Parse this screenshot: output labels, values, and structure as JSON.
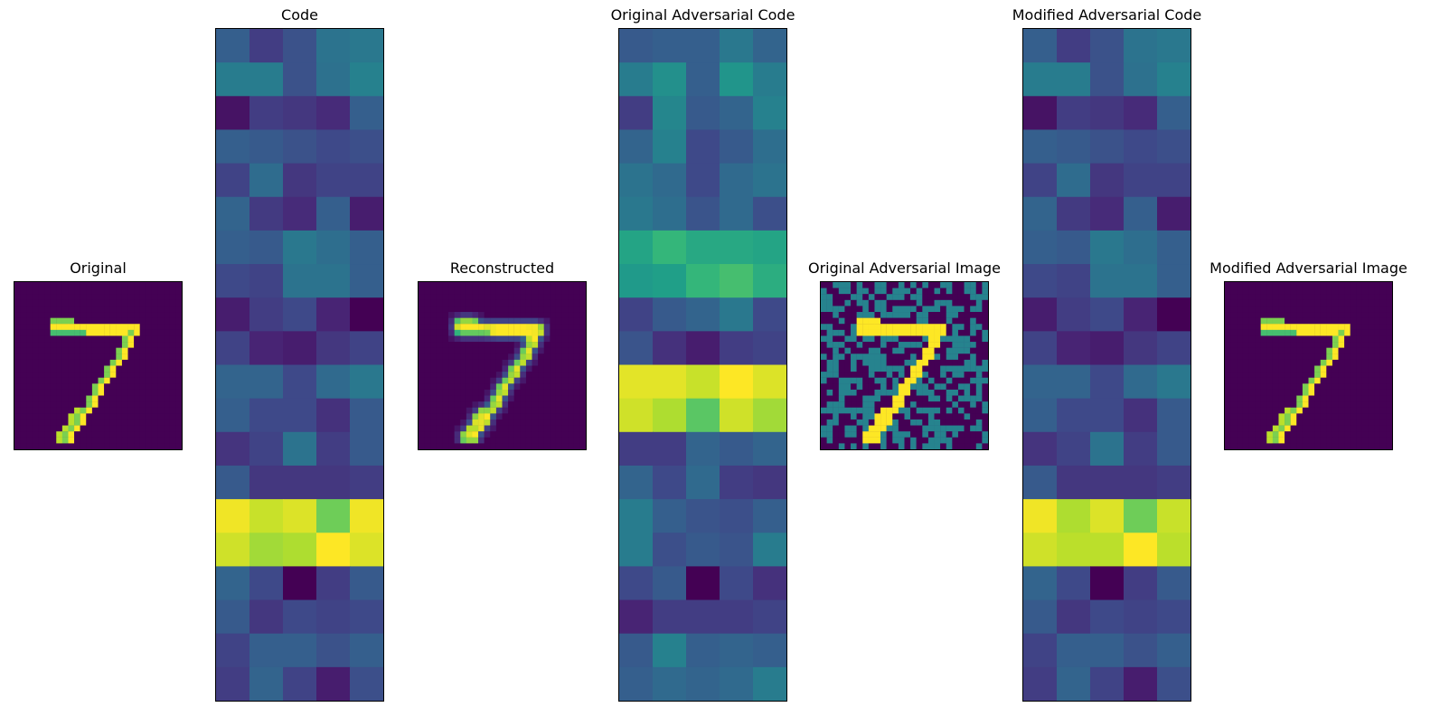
{
  "chart_data": [
    {
      "type": "heatmap",
      "title": "Original",
      "rows": 28,
      "cols": 28,
      "image": "digit-seven",
      "cmap": "viridis"
    },
    {
      "type": "heatmap",
      "title": "Code",
      "rows": 20,
      "cols": 5,
      "cmap": "viridis",
      "values": [
        [
          0.3,
          0.18,
          0.25,
          0.38,
          0.4
        ],
        [
          0.42,
          0.42,
          0.25,
          0.37,
          0.44
        ],
        [
          0.05,
          0.18,
          0.16,
          0.12,
          0.3
        ],
        [
          0.3,
          0.28,
          0.25,
          0.22,
          0.24
        ],
        [
          0.2,
          0.35,
          0.16,
          0.2,
          0.2
        ],
        [
          0.32,
          0.17,
          0.12,
          0.3,
          0.08
        ],
        [
          0.3,
          0.28,
          0.4,
          0.36,
          0.3
        ],
        [
          0.22,
          0.2,
          0.38,
          0.38,
          0.3
        ],
        [
          0.08,
          0.18,
          0.22,
          0.1,
          0.0
        ],
        [
          0.2,
          0.1,
          0.08,
          0.16,
          0.2
        ],
        [
          0.32,
          0.32,
          0.22,
          0.34,
          0.4
        ],
        [
          0.3,
          0.22,
          0.22,
          0.14,
          0.28
        ],
        [
          0.15,
          0.2,
          0.38,
          0.18,
          0.28
        ],
        [
          0.28,
          0.16,
          0.16,
          0.16,
          0.18
        ],
        [
          0.98,
          0.92,
          0.95,
          0.78,
          0.98
        ],
        [
          0.93,
          0.86,
          0.88,
          1.0,
          0.95
        ],
        [
          0.32,
          0.22,
          0.0,
          0.18,
          0.28
        ],
        [
          0.28,
          0.16,
          0.22,
          0.2,
          0.22
        ],
        [
          0.2,
          0.3,
          0.3,
          0.25,
          0.3
        ],
        [
          0.18,
          0.32,
          0.2,
          0.08,
          0.24
        ]
      ]
    },
    {
      "type": "heatmap",
      "title": "Reconstructed",
      "rows": 28,
      "cols": 28,
      "image": "digit-seven-blurred",
      "cmap": "viridis"
    },
    {
      "type": "heatmap",
      "title": "Original Adversarial Code",
      "rows": 20,
      "cols": 5,
      "cmap": "viridis",
      "values": [
        [
          0.28,
          0.3,
          0.3,
          0.4,
          0.32
        ],
        [
          0.42,
          0.5,
          0.3,
          0.52,
          0.42
        ],
        [
          0.18,
          0.46,
          0.28,
          0.32,
          0.44
        ],
        [
          0.32,
          0.44,
          0.22,
          0.28,
          0.36
        ],
        [
          0.38,
          0.34,
          0.22,
          0.34,
          0.38
        ],
        [
          0.4,
          0.36,
          0.26,
          0.34,
          0.24
        ],
        [
          0.58,
          0.66,
          0.6,
          0.6,
          0.58
        ],
        [
          0.54,
          0.56,
          0.66,
          0.7,
          0.62
        ],
        [
          0.2,
          0.28,
          0.32,
          0.4,
          0.22
        ],
        [
          0.26,
          0.14,
          0.08,
          0.18,
          0.2
        ],
        [
          0.96,
          0.96,
          0.92,
          1.0,
          0.95
        ],
        [
          0.93,
          0.88,
          0.74,
          0.93,
          0.86
        ],
        [
          0.18,
          0.18,
          0.32,
          0.28,
          0.32
        ],
        [
          0.32,
          0.22,
          0.34,
          0.18,
          0.16
        ],
        [
          0.42,
          0.3,
          0.26,
          0.24,
          0.3
        ],
        [
          0.42,
          0.24,
          0.28,
          0.26,
          0.42
        ],
        [
          0.22,
          0.28,
          0.0,
          0.22,
          0.14
        ],
        [
          0.1,
          0.18,
          0.18,
          0.18,
          0.2
        ],
        [
          0.28,
          0.44,
          0.3,
          0.32,
          0.3
        ],
        [
          0.3,
          0.34,
          0.32,
          0.34,
          0.42
        ]
      ]
    },
    {
      "type": "heatmap",
      "title": "Original Adversarial Image",
      "rows": 28,
      "cols": 28,
      "image": "noisy-digit-seven",
      "cmap": "viridis"
    },
    {
      "type": "heatmap",
      "title": "Modified Adversarial Code",
      "rows": 20,
      "cols": 5,
      "cmap": "viridis",
      "values": [
        [
          0.3,
          0.18,
          0.25,
          0.38,
          0.4
        ],
        [
          0.42,
          0.42,
          0.25,
          0.37,
          0.44
        ],
        [
          0.05,
          0.18,
          0.16,
          0.12,
          0.3
        ],
        [
          0.3,
          0.28,
          0.25,
          0.22,
          0.24
        ],
        [
          0.2,
          0.35,
          0.16,
          0.2,
          0.2
        ],
        [
          0.32,
          0.17,
          0.12,
          0.3,
          0.08
        ],
        [
          0.3,
          0.28,
          0.4,
          0.36,
          0.3
        ],
        [
          0.22,
          0.2,
          0.38,
          0.38,
          0.3
        ],
        [
          0.08,
          0.18,
          0.22,
          0.1,
          0.0
        ],
        [
          0.2,
          0.1,
          0.08,
          0.16,
          0.2
        ],
        [
          0.32,
          0.32,
          0.22,
          0.34,
          0.4
        ],
        [
          0.3,
          0.22,
          0.22,
          0.14,
          0.28
        ],
        [
          0.15,
          0.2,
          0.38,
          0.18,
          0.28
        ],
        [
          0.28,
          0.16,
          0.16,
          0.16,
          0.18
        ],
        [
          0.98,
          0.88,
          0.95,
          0.78,
          0.92
        ],
        [
          0.93,
          0.9,
          0.9,
          1.0,
          0.9
        ],
        [
          0.32,
          0.22,
          0.0,
          0.18,
          0.28
        ],
        [
          0.28,
          0.16,
          0.22,
          0.2,
          0.22
        ],
        [
          0.2,
          0.3,
          0.3,
          0.25,
          0.3
        ],
        [
          0.18,
          0.32,
          0.2,
          0.08,
          0.24
        ]
      ]
    },
    {
      "type": "heatmap",
      "title": "Modified Adversarial Image",
      "rows": 28,
      "cols": 28,
      "image": "digit-seven",
      "cmap": "viridis"
    }
  ]
}
